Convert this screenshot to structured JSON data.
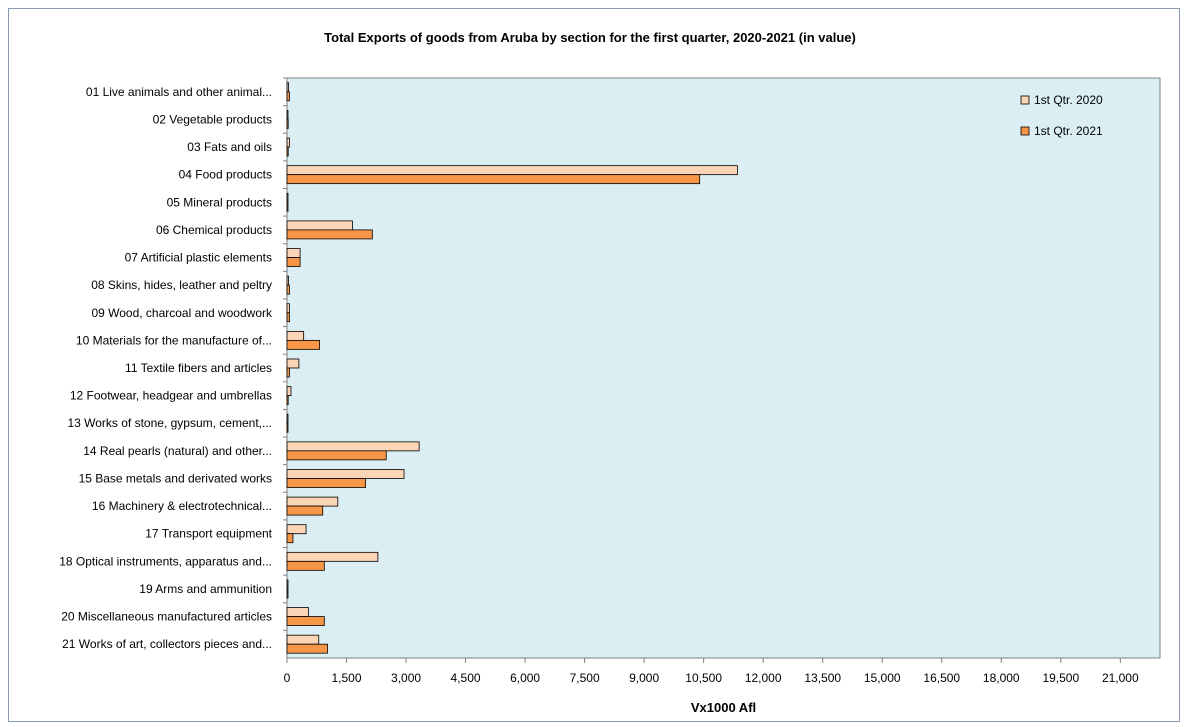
{
  "chart_data": {
    "type": "bar",
    "orientation": "horizontal",
    "title": "Total Exports of goods from Aruba by section for the  first quarter, 2020-2021 (in value)",
    "xlabel": "Vx1000 Afl",
    "ylabel": "",
    "xlim": [
      0,
      22000
    ],
    "xticks": [
      "0",
      "1,500",
      "3,000",
      "4,500",
      "6,000",
      "7,500",
      "9,000",
      "10,500",
      "12,000",
      "13,500",
      "15,000",
      "16,500",
      "18,000",
      "19,500",
      "21,000"
    ],
    "grid": false,
    "legend_position": "top-right",
    "categories": [
      "01 Live animals and other animal...",
      "02 Vegetable products",
      "03 Fats and oils",
      "04 Food products",
      "05 Mineral products",
      "06 Chemical products",
      "07 Artificial plastic elements",
      "08 Skins, hides, leather and peltry",
      "09 Wood, charcoal and woodwork",
      "10 Materials for the manufacture of...",
      "11 Textile fibers and articles",
      "12 Footwear, headgear and umbrellas",
      "13 Works of stone, gypsum, cement,...",
      "14 Real pearls (natural) and other...",
      "15 Base metals and derivated works",
      "16 Machinery & electrotechnical...",
      "17 Transport equipment",
      "18 Optical instruments, apparatus and...",
      "19 Arms and ammunition",
      "20 Miscellaneous manufactured articles",
      "21 Works of art, collectors pieces and..."
    ],
    "series": [
      {
        "name": "1st Qtr. 2020",
        "color": "#fbd5b5",
        "values": [
          40,
          25,
          60,
          11350,
          20,
          1650,
          330,
          40,
          60,
          420,
          300,
          100,
          20,
          3330,
          2950,
          1280,
          480,
          2290,
          20,
          540,
          800
        ]
      },
      {
        "name": "1st Qtr. 2021",
        "color": "#f79646",
        "values": [
          60,
          30,
          30,
          10400,
          25,
          2150,
          330,
          60,
          60,
          820,
          60,
          30,
          20,
          2500,
          1980,
          900,
          150,
          940,
          20,
          940,
          1020
        ]
      }
    ]
  }
}
